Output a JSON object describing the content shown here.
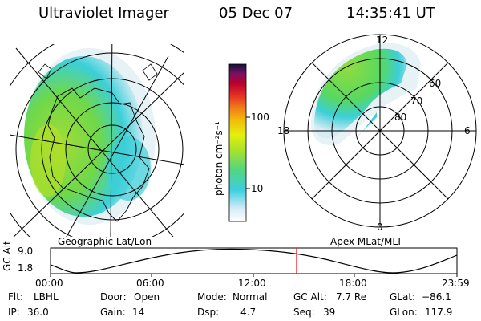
{
  "header": {
    "instrument": "Ultraviolet Imager",
    "date": "05 Dec 07",
    "time": "14:35:41 UT"
  },
  "geo_panel": {
    "label": "Geographic Lat/Lon"
  },
  "polar_panel": {
    "label": "Apex MLat/MLT",
    "mlt_labels": {
      "top": "12",
      "left": "18",
      "right": "6",
      "bottom": "0"
    },
    "lat_labels": [
      "60",
      "70",
      "80"
    ]
  },
  "colorbar": {
    "unit_label": "photon cm⁻²s⁻¹",
    "ticks": [
      "100",
      "10"
    ],
    "colors": [
      "#ffffff",
      "#d8ecf4",
      "#3ccfe0",
      "#52d680",
      "#a6e22c",
      "#e4f00a",
      "#f2be0a",
      "#f08018",
      "#e63024",
      "#b8002e",
      "#7a1060",
      "#14103c"
    ]
  },
  "altitude_plot": {
    "ylabel": "GC Alt",
    "yticks": [
      "9.0",
      "1.8"
    ],
    "xticks": [
      "00:00",
      "06:00",
      "12:00",
      "18:00",
      "23:59"
    ],
    "marker_time": "14:35:41",
    "marker_color": "#ff0000"
  },
  "status": {
    "row1": {
      "flt_label": "Flt:",
      "flt_value": "LBHL",
      "door_label": "Door:",
      "door_value": "Open",
      "mode_label": "Mode:",
      "mode_value": "Normal",
      "gcalt_label": "GC Alt:",
      "gcalt_value": "7.7 Re",
      "glat_label": "GLat:",
      "glat_value": "−86.1"
    },
    "row2": {
      "ip_label": "IP:",
      "ip_value": "36.0",
      "gain_label": "Gain:",
      "gain_value": "14",
      "dsp_label": "Dsp:",
      "dsp_value": "4.7",
      "seq_label": "Seq:",
      "seq_value": "39",
      "glon_label": "GLon:",
      "glon_value": "117.9"
    }
  }
}
